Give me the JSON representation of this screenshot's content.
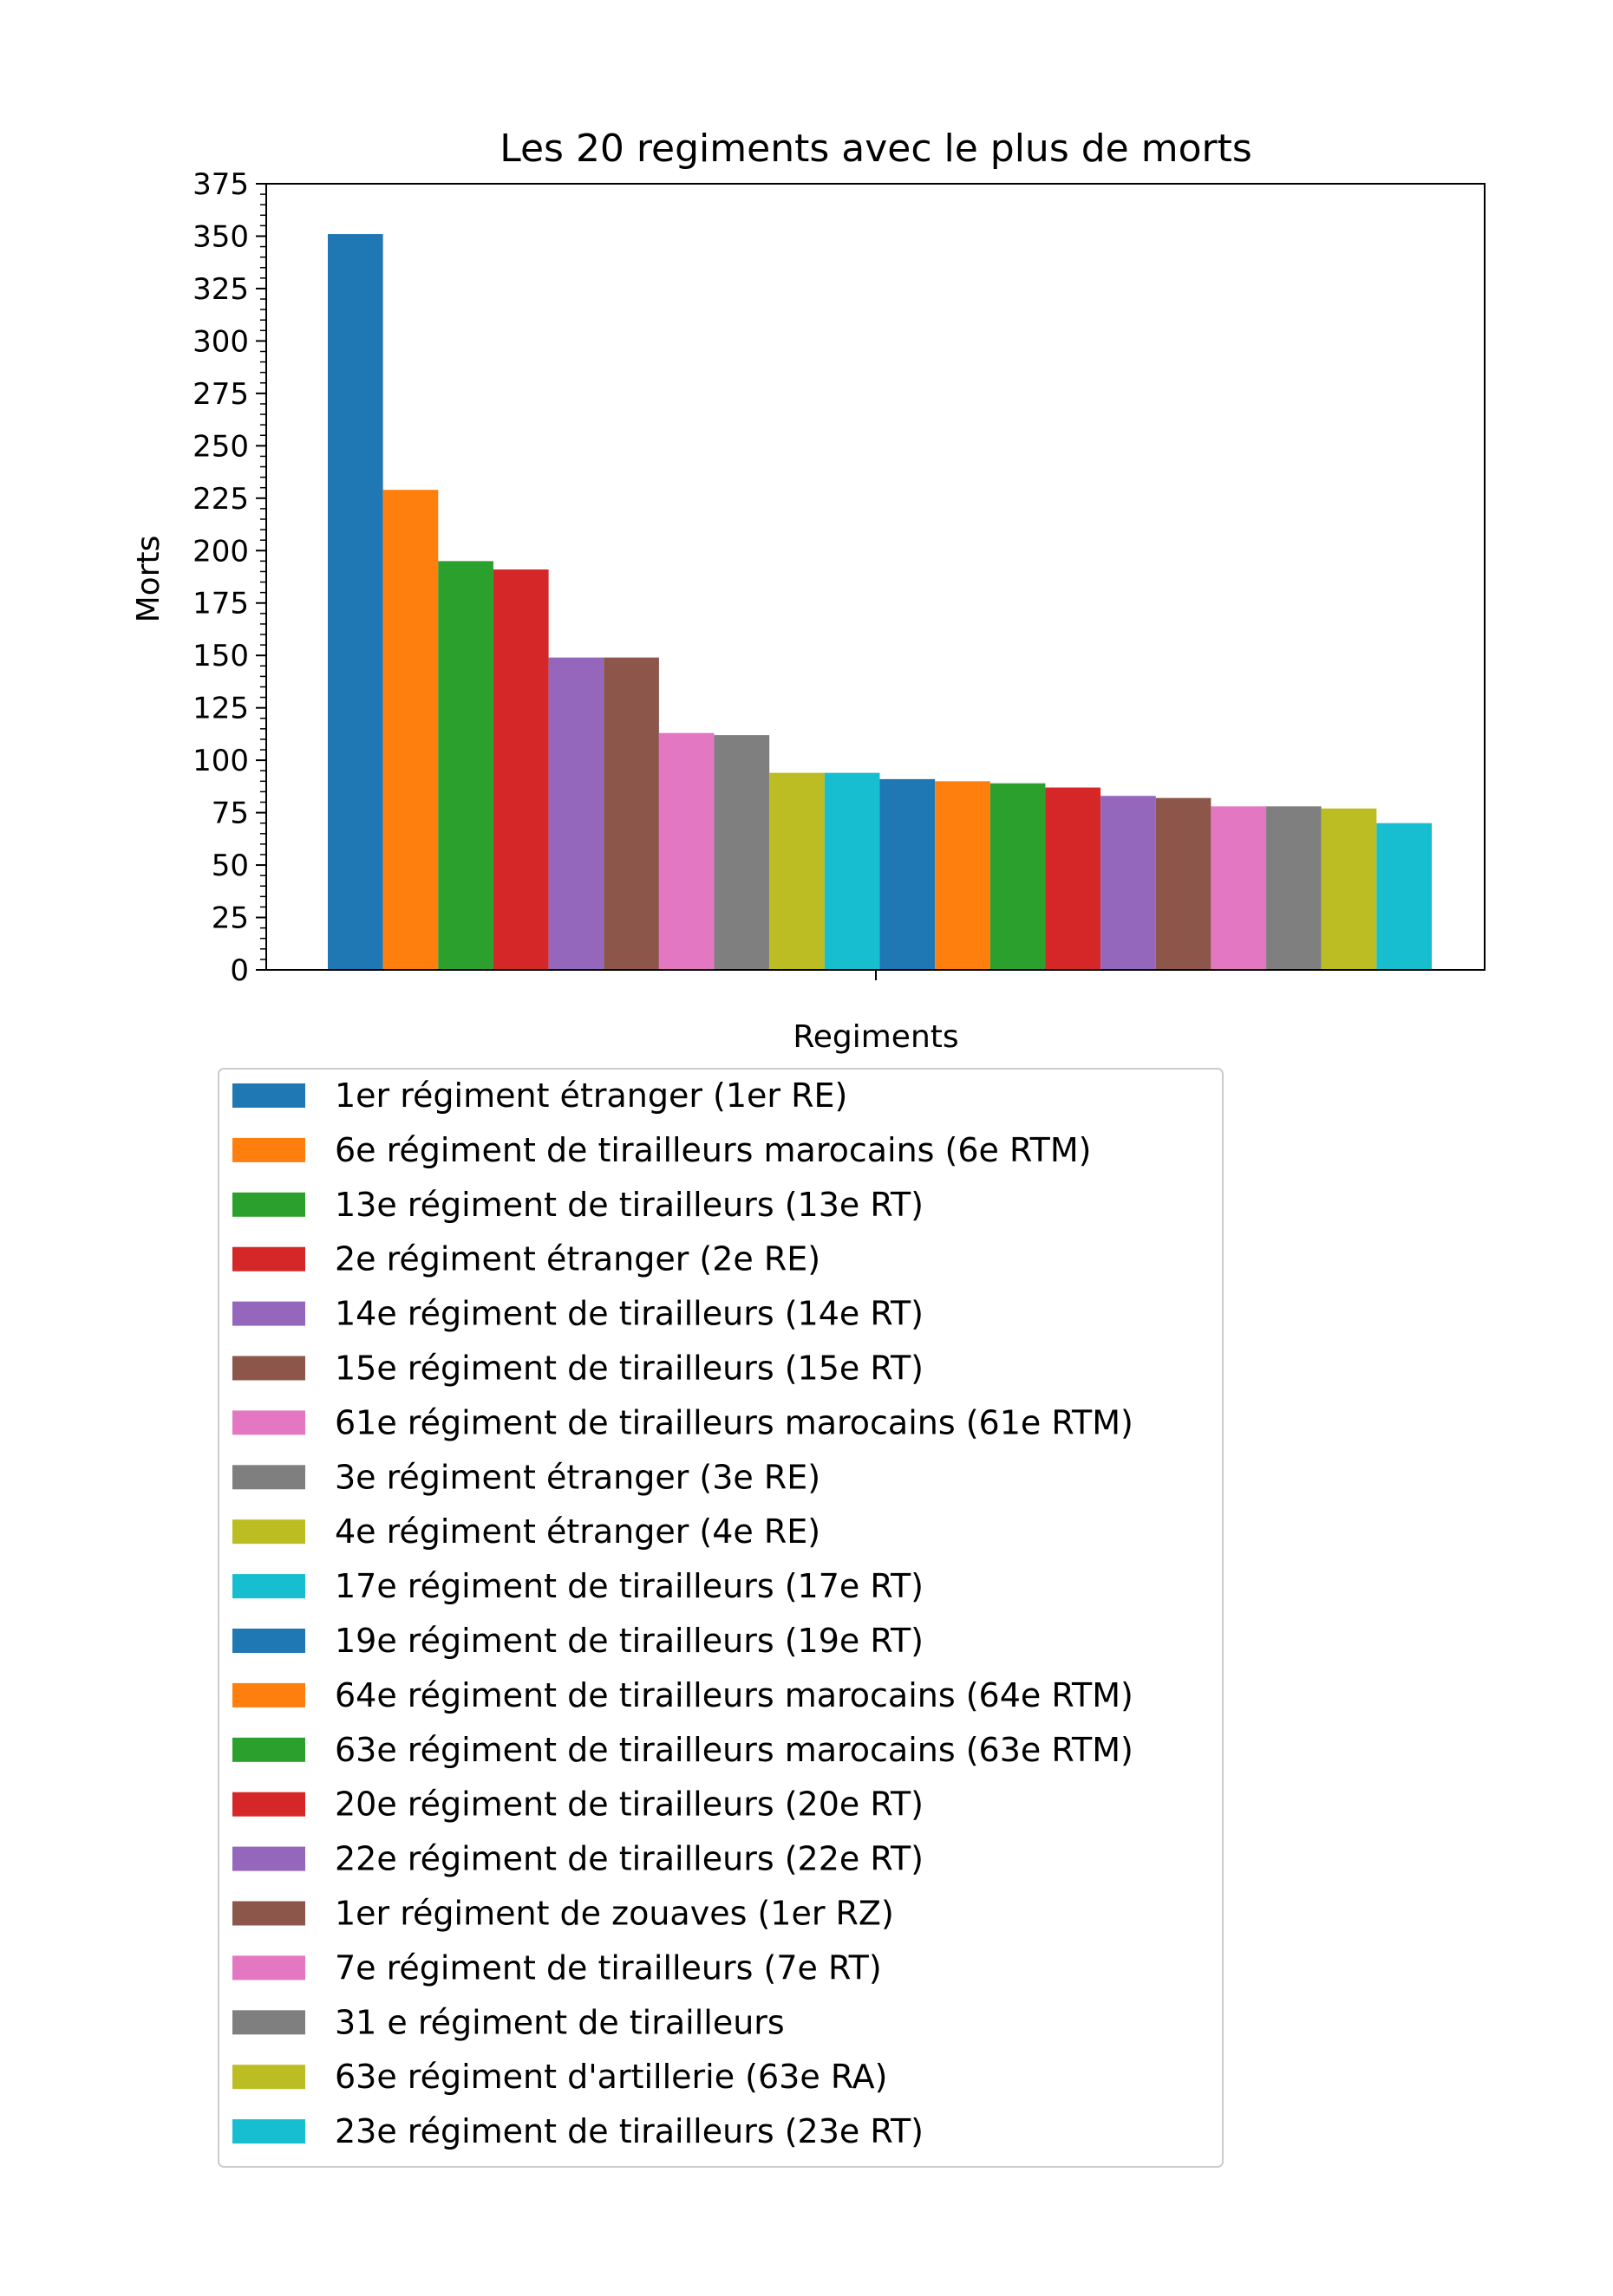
{
  "chart_data": {
    "type": "bar",
    "title": "Les 20 regiments avec le plus de morts",
    "xlabel": "Regiments",
    "ylabel": "Morts",
    "ylim": [
      0,
      375
    ],
    "yticks": [
      0,
      25,
      50,
      75,
      100,
      125,
      150,
      175,
      200,
      225,
      250,
      275,
      300,
      325,
      350,
      375
    ],
    "grid": false,
    "legend_position": "below",
    "series": [
      {
        "name": "1er régiment étranger (1er RE)",
        "value": 351,
        "color": "#1f77b4"
      },
      {
        "name": "6e régiment de tirailleurs marocains (6e RTM)",
        "value": 229,
        "color": "#ff7f0e"
      },
      {
        "name": "13e régiment de tirailleurs (13e RT)",
        "value": 195,
        "color": "#2ca02c"
      },
      {
        "name": "2e régiment étranger (2e RE)",
        "value": 191,
        "color": "#d62728"
      },
      {
        "name": "14e régiment de tirailleurs (14e RT)",
        "value": 149,
        "color": "#9467bd"
      },
      {
        "name": "15e régiment de tirailleurs (15e RT)",
        "value": 149,
        "color": "#8c564b"
      },
      {
        "name": "61e régiment de tirailleurs marocains (61e RTM)",
        "value": 113,
        "color": "#e377c2"
      },
      {
        "name": "3e régiment étranger (3e RE)",
        "value": 112,
        "color": "#7f7f7f"
      },
      {
        "name": "4e régiment étranger (4e RE)",
        "value": 94,
        "color": "#bcbd22"
      },
      {
        "name": "17e régiment de tirailleurs (17e RT)",
        "value": 94,
        "color": "#17becf"
      },
      {
        "name": "19e régiment de tirailleurs (19e RT)",
        "value": 91,
        "color": "#1f77b4"
      },
      {
        "name": "64e régiment de tirailleurs marocains (64e RTM)",
        "value": 90,
        "color": "#ff7f0e"
      },
      {
        "name": "63e régiment de tirailleurs marocains (63e RTM)",
        "value": 89,
        "color": "#2ca02c"
      },
      {
        "name": "20e régiment de tirailleurs (20e RT)",
        "value": 87,
        "color": "#d62728"
      },
      {
        "name": "22e régiment de tirailleurs (22e RT)",
        "value": 83,
        "color": "#9467bd"
      },
      {
        "name": "1er régiment de zouaves (1er RZ)",
        "value": 82,
        "color": "#8c564b"
      },
      {
        "name": "7e régiment de tirailleurs (7e RT)",
        "value": 78,
        "color": "#e377c2"
      },
      {
        "name": "31 e régiment de tirailleurs",
        "value": 78,
        "color": "#7f7f7f"
      },
      {
        "name": "63e régiment d'artillerie (63e RA)",
        "value": 77,
        "color": "#bcbd22"
      },
      {
        "name": "23e régiment de tirailleurs (23e RT)",
        "value": 70,
        "color": "#17becf"
      }
    ]
  }
}
